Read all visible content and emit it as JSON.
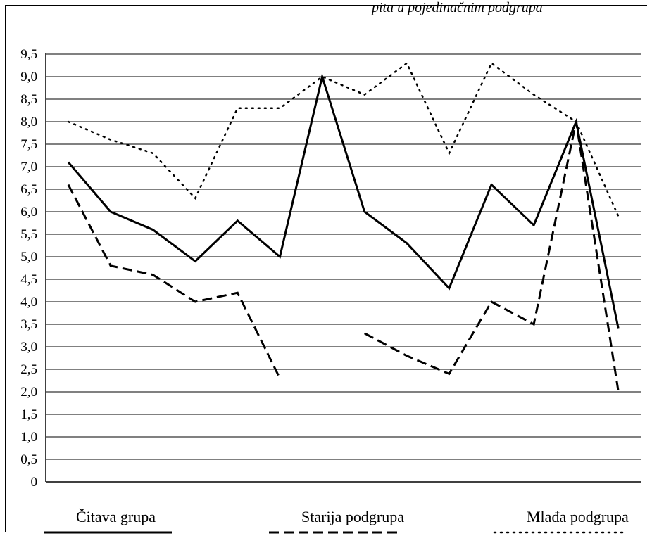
{
  "page": {
    "top_text": "pita u pojedinačnim podgrupa"
  },
  "chart_data": {
    "type": "line",
    "title": "",
    "xlabel": "",
    "ylabel": "",
    "ylim": [
      0,
      9.5
    ],
    "yticks": [
      0,
      0.5,
      1.0,
      1.5,
      2.0,
      2.5,
      3.0,
      3.5,
      4.0,
      4.5,
      5.0,
      5.5,
      6.0,
      6.5,
      7.0,
      7.5,
      8.0,
      8.5,
      9.0,
      9.5
    ],
    "ytick_labels": [
      "0",
      "0,5",
      "1,0",
      "1,5",
      "2,0",
      "2,5",
      "3,0",
      "3,5",
      "4,0",
      "4,5",
      "5,0",
      "5,5",
      "6,0",
      "6,5",
      "7,0",
      "7,5",
      "8,0",
      "8,5",
      "9,0",
      "9,5"
    ],
    "x": [
      1,
      2,
      3,
      4,
      5,
      6,
      7,
      8,
      9,
      10,
      11,
      12,
      13,
      14
    ],
    "grid": true,
    "legend_placement": "bottom",
    "series": [
      {
        "name": "Čitava grupa",
        "style": "solid",
        "color": "#000000",
        "values": [
          7.1,
          6.0,
          5.6,
          4.9,
          5.8,
          5.0,
          9.0,
          6.0,
          5.3,
          4.3,
          6.6,
          5.7,
          8.0,
          3.4
        ]
      },
      {
        "name": "Starija podgrupa",
        "style": "dashed",
        "color": "#000000",
        "values": [
          6.6,
          4.8,
          4.6,
          4.0,
          4.2,
          2.3,
          null,
          3.3,
          2.8,
          2.4,
          4.0,
          3.5,
          8.0,
          2.0
        ]
      },
      {
        "name": "Mlađa podgrupa",
        "style": "dotted",
        "color": "#000000",
        "values": [
          8.0,
          7.6,
          7.3,
          6.3,
          8.3,
          8.3,
          9.0,
          8.6,
          9.3,
          7.3,
          9.3,
          8.6,
          8.0,
          5.9
        ]
      }
    ]
  }
}
